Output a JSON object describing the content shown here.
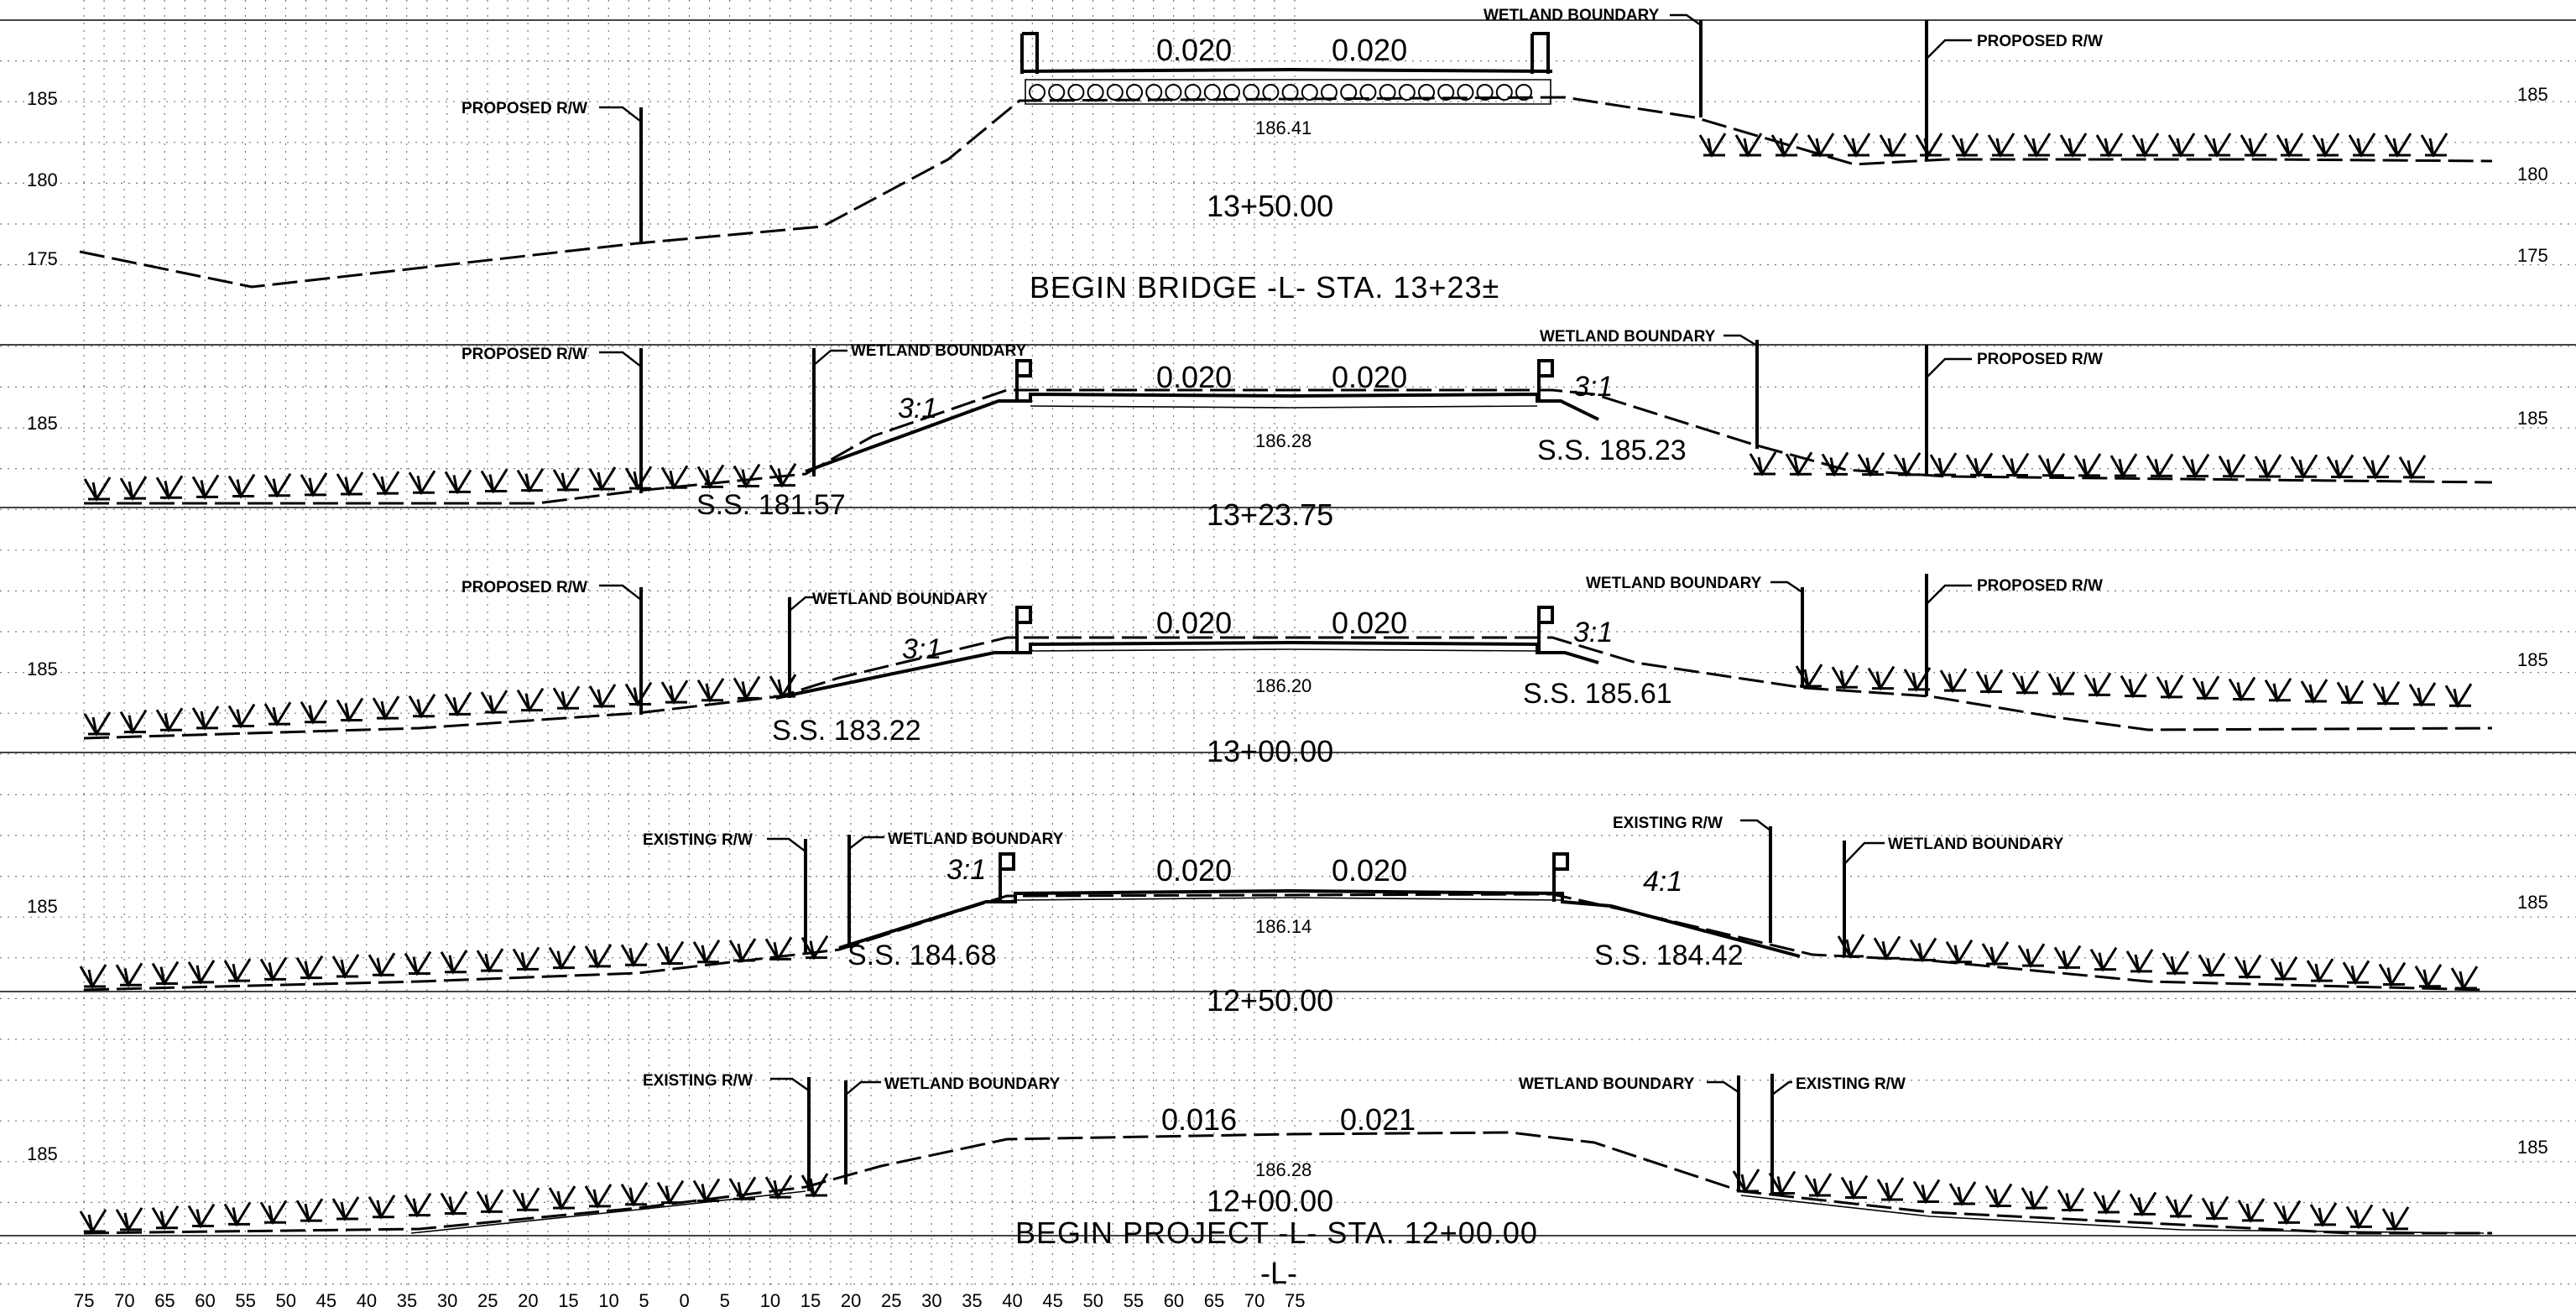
{
  "drawing": {
    "alignment_label": "-L-",
    "elevation_ticks": {
      "s1": [
        "185",
        "180",
        "175"
      ],
      "s2": [
        "185"
      ],
      "s3": [
        "185"
      ],
      "s4": [
        "185"
      ],
      "s5": [
        "185"
      ]
    },
    "offset_axis_labels": [
      "75",
      "70",
      "65",
      "60",
      "55",
      "50",
      "45",
      "40",
      "35",
      "30",
      "25",
      "20",
      "15",
      "10",
      "5",
      "0",
      "5",
      "10",
      "15",
      "20",
      "25",
      "30",
      "35",
      "40",
      "45",
      "50",
      "55",
      "60",
      "65",
      "70",
      "75"
    ]
  },
  "sections": [
    {
      "station": "13+50.00",
      "note": "BEGIN BRIDGE -L- STA. 13+23±",
      "centerline_elev": "186.41",
      "grade_left": "0.020",
      "grade_right": "0.020",
      "callouts": {
        "proposed_rw_left": "PROPOSED R/W",
        "wetland_boundary_right": "WETLAND BOUNDARY",
        "proposed_rw_right": "PROPOSED R/W"
      }
    },
    {
      "station": "13+23.75",
      "centerline_elev": "186.28",
      "grade_left": "0.020",
      "grade_right": "0.020",
      "slope_left": "3:1",
      "slope_right": "3:1",
      "ss_left": "S.S. 181.57",
      "ss_right": "S.S. 185.23",
      "callouts": {
        "proposed_rw_left": "PROPOSED R/W",
        "wetland_boundary_left": "WETLAND BOUNDARY",
        "wetland_boundary_right": "WETLAND BOUNDARY",
        "proposed_rw_right": "PROPOSED R/W"
      }
    },
    {
      "station": "13+00.00",
      "centerline_elev": "186.20",
      "grade_left": "0.020",
      "grade_right": "0.020",
      "slope_left": "3:1",
      "slope_right": "3:1",
      "ss_left": "S.S. 183.22",
      "ss_right": "S.S. 185.61",
      "callouts": {
        "proposed_rw_left": "PROPOSED R/W",
        "wetland_boundary_left": "WETLAND BOUNDARY",
        "wetland_boundary_right": "WETLAND BOUNDARY",
        "proposed_rw_right": "PROPOSED R/W"
      }
    },
    {
      "station": "12+50.00",
      "centerline_elev": "186.14",
      "grade_left": "0.020",
      "grade_right": "0.020",
      "slope_left": "3:1",
      "slope_right": "4:1",
      "ss_left": "S.S. 184.68",
      "ss_right": "S.S. 184.42",
      "callouts": {
        "existing_rw_left": "EXISTING R/W",
        "wetland_boundary_left": "WETLAND BOUNDARY",
        "existing_rw_right": "EXISTING R/W",
        "wetland_boundary_right": "WETLAND BOUNDARY"
      }
    },
    {
      "station": "12+00.00",
      "note": "BEGIN PROJECT -L- STA. 12+00.00",
      "centerline_elev": "186.28",
      "grade_left": "0.016",
      "grade_right": "0.021",
      "callouts": {
        "existing_rw_left": "EXISTING R/W",
        "wetland_boundary_left": "WETLAND BOUNDARY",
        "wetland_boundary_right": "WETLAND BOUNDARY",
        "existing_rw_right": "EXISTING R/W"
      }
    }
  ]
}
